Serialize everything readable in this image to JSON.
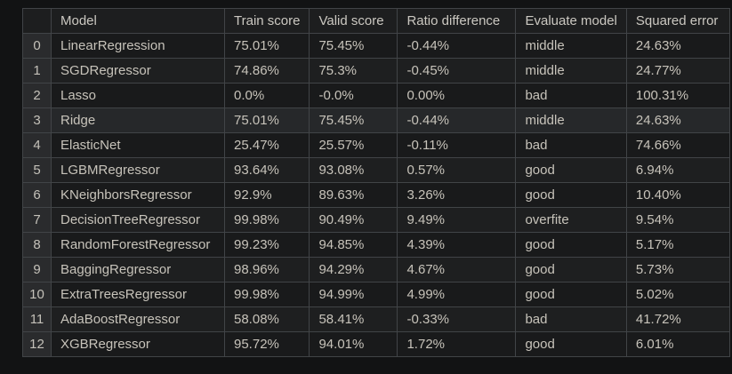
{
  "table": {
    "columns": [
      "",
      "Model",
      "Train score",
      "Valid score",
      "Ratio difference",
      "Evaluate model",
      "Squared error"
    ],
    "rows": [
      {
        "index": "0",
        "cells": [
          "LinearRegression",
          "75.01%",
          "75.45%",
          "-0.44%",
          "middle",
          "24.63%"
        ]
      },
      {
        "index": "1",
        "cells": [
          "SGDRegressor",
          "74.86%",
          "75.3%",
          "-0.45%",
          "middle",
          "24.77%"
        ]
      },
      {
        "index": "2",
        "cells": [
          "Lasso",
          "0.0%",
          "-0.0%",
          "0.00%",
          "bad",
          "100.31%"
        ]
      },
      {
        "index": "3",
        "cells": [
          "Ridge",
          "75.01%",
          "75.45%",
          "-0.44%",
          "middle",
          "24.63%"
        ]
      },
      {
        "index": "4",
        "cells": [
          "ElasticNet",
          "25.47%",
          "25.57%",
          "-0.11%",
          "bad",
          "74.66%"
        ]
      },
      {
        "index": "5",
        "cells": [
          "LGBMRegressor",
          "93.64%",
          "93.08%",
          "0.57%",
          "good",
          "6.94%"
        ]
      },
      {
        "index": "6",
        "cells": [
          "KNeighborsRegressor",
          "92.9%",
          "89.63%",
          "3.26%",
          "good",
          "10.40%"
        ]
      },
      {
        "index": "7",
        "cells": [
          "DecisionTreeRegressor",
          "99.98%",
          "90.49%",
          "9.49%",
          "overfite",
          "9.54%"
        ]
      },
      {
        "index": "8",
        "cells": [
          "RandomForestRegressor",
          "99.23%",
          "94.85%",
          "4.39%",
          "good",
          "5.17%"
        ]
      },
      {
        "index": "9",
        "cells": [
          "BaggingRegressor",
          "98.96%",
          "94.29%",
          "4.67%",
          "good",
          "5.73%"
        ]
      },
      {
        "index": "10",
        "cells": [
          "ExtraTreesRegressor",
          "99.98%",
          "94.99%",
          "4.99%",
          "good",
          "5.02%"
        ]
      },
      {
        "index": "11",
        "cells": [
          "AdaBoostRegressor",
          "58.08%",
          "58.41%",
          "-0.33%",
          "bad",
          "41.72%"
        ]
      },
      {
        "index": "12",
        "cells": [
          "XGBRegressor",
          "95.72%",
          "94.01%",
          "1.72%",
          "good",
          "6.01%"
        ]
      }
    ],
    "highlighted_row": 3
  },
  "colors": {
    "page_bg": "#121314",
    "header_bg": "#1d1e1f",
    "index_col_bg": "#2a2b2d",
    "row_bg": "#191a1b",
    "row_stripe_bg": "#1e1f20",
    "row_highlight_bg": "#26282a",
    "border": "#414447",
    "text": "#c7c3ba"
  }
}
